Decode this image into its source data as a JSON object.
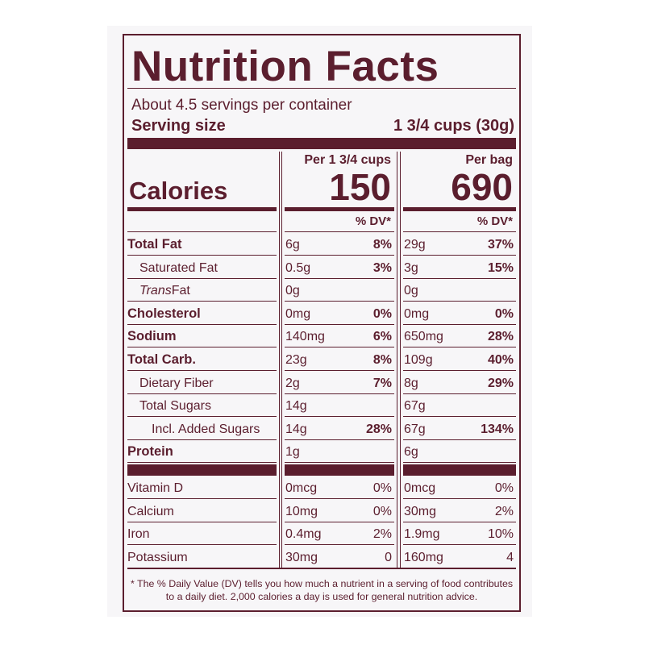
{
  "title": "Nutrition Facts",
  "servings": "About 4.5 servings per container",
  "serving_size": {
    "label": "Serving size",
    "value": "1 3/4 cups (30g)"
  },
  "calories_label": "Calories",
  "columns": [
    {
      "header": "Per 1 3/4 cups",
      "calories": "150",
      "dv_header": "% DV*"
    },
    {
      "header": "Per bag",
      "calories": "690",
      "dv_header": "% DV*"
    }
  ],
  "nutrients": [
    {
      "name": "Total Fat",
      "bold": true,
      "indent": 0,
      "values": [
        [
          "6g",
          "8%"
        ],
        [
          "29g",
          "37%"
        ]
      ]
    },
    {
      "name": "Saturated Fat",
      "bold": false,
      "indent": 1,
      "values": [
        [
          "0.5g",
          "3%"
        ],
        [
          "3g",
          "15%"
        ]
      ]
    },
    {
      "prefix": "Trans",
      "name": "Fat",
      "bold": false,
      "indent": 1,
      "values": [
        [
          "0g"
        ],
        [
          "0g"
        ]
      ]
    },
    {
      "name": "Cholesterol",
      "bold": true,
      "indent": 0,
      "values": [
        [
          "0mg",
          "0%"
        ],
        [
          "0mg",
          "0%"
        ]
      ]
    },
    {
      "name": "Sodium",
      "bold": true,
      "indent": 0,
      "values": [
        [
          "140mg",
          "6%"
        ],
        [
          "650mg",
          "28%"
        ]
      ]
    },
    {
      "name": "Total Carb.",
      "bold": true,
      "indent": 0,
      "values": [
        [
          "23g",
          "8%"
        ],
        [
          "109g",
          "40%"
        ]
      ]
    },
    {
      "name": "Dietary Fiber",
      "bold": false,
      "indent": 1,
      "values": [
        [
          "2g",
          "7%"
        ],
        [
          "8g",
          "29%"
        ]
      ]
    },
    {
      "name": "Total Sugars",
      "bold": false,
      "indent": 1,
      "values": [
        [
          "14g"
        ],
        [
          "67g"
        ]
      ]
    },
    {
      "name": "Incl. Added Sugars",
      "bold": false,
      "indent": 2,
      "values": [
        [
          "14g",
          "28%"
        ],
        [
          "67g",
          "134%"
        ]
      ]
    },
    {
      "name": "Protein",
      "bold": true,
      "indent": 0,
      "values": [
        [
          "1g"
        ],
        [
          "6g"
        ]
      ]
    }
  ],
  "vitamins": [
    {
      "name": "Vitamin D",
      "values": [
        [
          "0mcg",
          "0%"
        ],
        [
          "0mcg",
          "0%"
        ]
      ]
    },
    {
      "name": "Calcium",
      "values": [
        [
          "10mg",
          "0%"
        ],
        [
          "30mg",
          "2%"
        ]
      ]
    },
    {
      "name": "Iron",
      "values": [
        [
          "0.4mg",
          "2%"
        ],
        [
          "1.9mg",
          "10%"
        ]
      ]
    },
    {
      "name": "Potassium",
      "values": [
        [
          "30mg",
          "0"
        ],
        [
          "160mg",
          "4"
        ]
      ]
    }
  ],
  "footnote": "* The % Daily Value (DV) tells you how much a nutrient in a serving of food contributes to a daily diet. 2,000 calories a day is used for general nutrition advice."
}
